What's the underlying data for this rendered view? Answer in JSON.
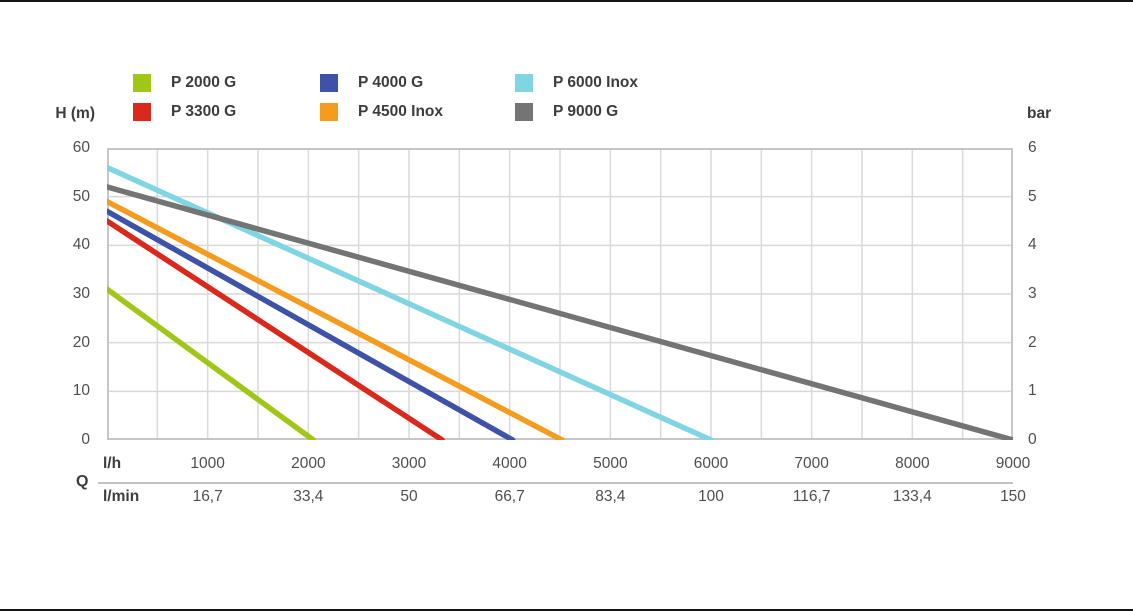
{
  "page": {
    "background": "#ffffff",
    "edge_line_color": "#151515"
  },
  "chart_data": {
    "type": "line",
    "title": "",
    "description": "Pump performance curves: head H (m) / pressure (bar) versus flow rate Q (l/h and l/min)",
    "grid": true,
    "grid_color": "#d9d9d9",
    "border_color": "#c6c6c6",
    "left_axis": {
      "label": "H (m)",
      "min": 0,
      "max": 60,
      "grid_step": 10,
      "ticks": [
        "60",
        "50",
        "40",
        "30",
        "20",
        "10",
        "0"
      ]
    },
    "right_axis": {
      "label": "bar",
      "min": 0,
      "max": 6,
      "ticks": [
        "6",
        "5",
        "4",
        "3",
        "2",
        "1",
        "0"
      ]
    },
    "x_axis": {
      "label": "Q",
      "min": 0,
      "max": 9000,
      "grid_step": 500,
      "label_step": 1000,
      "row1_label": "l/h",
      "row2_label": "l/min",
      "row1_ticks": [
        "1000",
        "2000",
        "3000",
        "4000",
        "5000",
        "6000",
        "7000",
        "8000",
        "9000"
      ],
      "row2_ticks": [
        "16,7",
        "33,4",
        "50",
        "66,7",
        "83,4",
        "100",
        "116,7",
        "133,4",
        "150"
      ]
    },
    "legend": {
      "position": "top",
      "columns": [
        [
          0,
          1
        ],
        [
          2,
          3
        ],
        [
          4,
          5
        ]
      ]
    },
    "series": [
      {
        "name": "P 2000 G",
        "color": "#a2c617",
        "points": [
          [
            0,
            31
          ],
          [
            2050,
            0
          ]
        ]
      },
      {
        "name": "P 3300 G",
        "color": "#da291c",
        "points": [
          [
            0,
            45
          ],
          [
            3330,
            0
          ]
        ]
      },
      {
        "name": "P 4000 G",
        "color": "#3e52a8",
        "points": [
          [
            0,
            47
          ],
          [
            4030,
            0
          ]
        ]
      },
      {
        "name": "P 4500 Inox",
        "color": "#f59b1e",
        "points": [
          [
            0,
            49
          ],
          [
            4520,
            0
          ]
        ]
      },
      {
        "name": "P 6000 Inox",
        "color": "#80d5e3",
        "points": [
          [
            0,
            56
          ],
          [
            6000,
            0
          ]
        ]
      },
      {
        "name": "P 9000 G",
        "color": "#747474",
        "points": [
          [
            0,
            52
          ],
          [
            9000,
            0
          ]
        ]
      }
    ]
  }
}
